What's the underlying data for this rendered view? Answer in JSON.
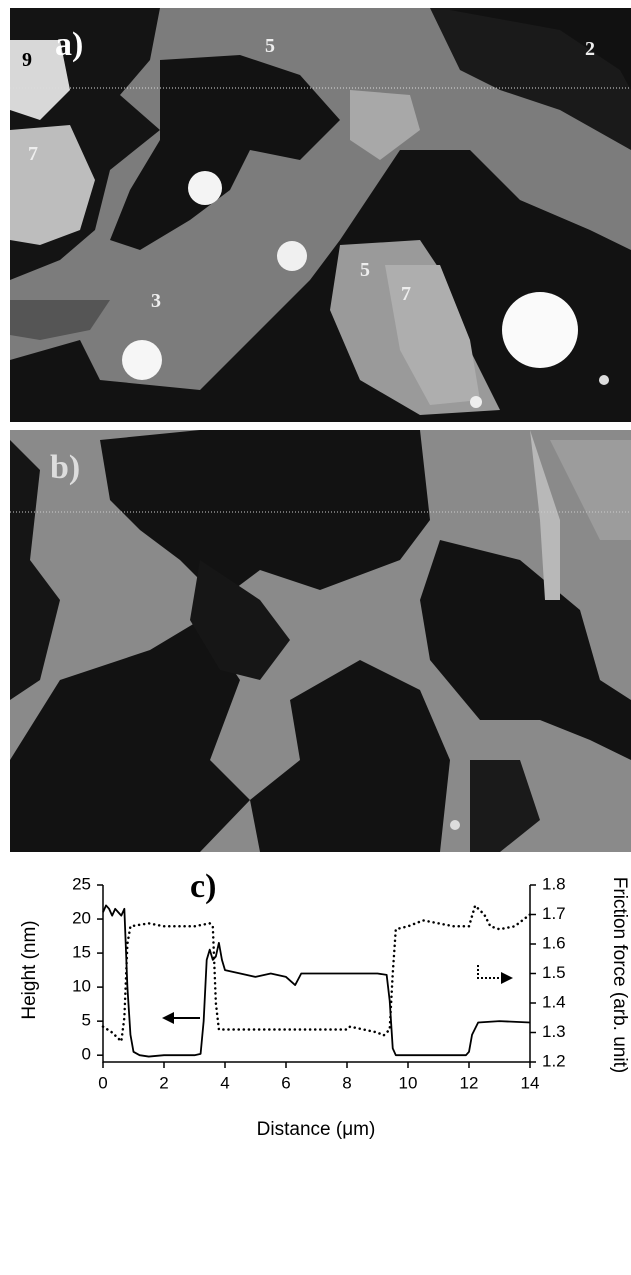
{
  "panels": [
    {
      "label": "a)",
      "annotations": [
        "9",
        "5",
        "2",
        "7",
        "3",
        "5",
        "7"
      ]
    },
    {
      "label": "b)"
    }
  ],
  "chart_data": {
    "type": "line",
    "panel_label": "c)",
    "x_label": "Distance (μm)",
    "y_label": "Height (nm)",
    "y2_label": "Friction force (arb. unit)",
    "xlim": [
      0,
      14
    ],
    "xticks": [
      0,
      2,
      4,
      6,
      8,
      10,
      12,
      14
    ],
    "ylim": [
      -1,
      25
    ],
    "yticks": [
      0,
      5,
      10,
      15,
      20,
      25
    ],
    "y2lim": [
      1.2,
      1.8
    ],
    "y2ticks": [
      1.2,
      1.3,
      1.4,
      1.5,
      1.6,
      1.7,
      1.8
    ],
    "series": [
      {
        "color": "#000000",
        "dash": "solid",
        "x": [
          0,
          0.1,
          0.2,
          0.3,
          0.4,
          0.5,
          0.6,
          0.7,
          0.8,
          0.9,
          1.0,
          1.2,
          1.5,
          2,
          2.5,
          3,
          3.2,
          3.3,
          3.4,
          3.5,
          3.6,
          3.7,
          3.8,
          3.9,
          4,
          4.5,
          5,
          5.5,
          6,
          6.3,
          6.5,
          7,
          7.5,
          8,
          8.5,
          9,
          9.3,
          9.4,
          9.5,
          9.6,
          10,
          11,
          11.9,
          12,
          12.1,
          12.3,
          13,
          14
        ],
        "values": [
          21,
          22,
          21.5,
          20.5,
          21.5,
          21,
          20.5,
          21.5,
          10,
          3,
          0.5,
          0,
          -0.2,
          0,
          0,
          0,
          0.2,
          5,
          14,
          15.5,
          14,
          14.5,
          16.5,
          14,
          12.5,
          12,
          11.5,
          12,
          11.5,
          10.3,
          12,
          12,
          12,
          12,
          12,
          12,
          11.8,
          8,
          1,
          0,
          0,
          0,
          0,
          0.5,
          3,
          4.8,
          5,
          4.8
        ]
      },
      {
        "color": "#000000",
        "dash": "dotted",
        "axis": "y2",
        "x": [
          0,
          0.3,
          0.5,
          0.6,
          0.7,
          0.8,
          0.9,
          1.5,
          2,
          3,
          3.5,
          3.6,
          3.7,
          3.8,
          5,
          6,
          7,
          8,
          8.1,
          9,
          9.2,
          9.4,
          9.5,
          9.6,
          10,
          10.5,
          11,
          11.5,
          12,
          12.2,
          12.5,
          12.7,
          13,
          13.5,
          14
        ],
        "values": [
          1.32,
          1.3,
          1.28,
          1.27,
          1.35,
          1.6,
          1.66,
          1.67,
          1.66,
          1.66,
          1.67,
          1.66,
          1.4,
          1.31,
          1.31,
          1.31,
          1.31,
          1.31,
          1.32,
          1.3,
          1.29,
          1.31,
          1.5,
          1.65,
          1.66,
          1.68,
          1.67,
          1.66,
          1.66,
          1.73,
          1.7,
          1.66,
          1.65,
          1.66,
          1.7
        ]
      }
    ]
  }
}
